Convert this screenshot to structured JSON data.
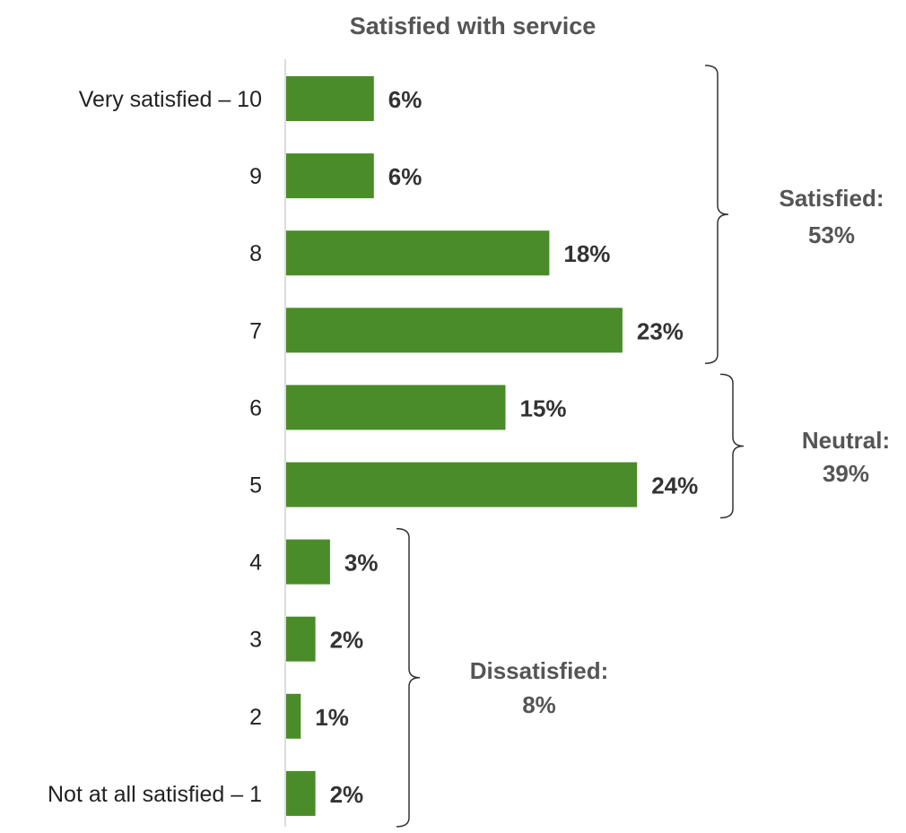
{
  "chart_data": {
    "type": "bar",
    "orientation": "horizontal",
    "title": "Satisfied with service",
    "categories": [
      "Very satisfied – 10",
      "9",
      "8",
      "7",
      "6",
      "5",
      "4",
      "3",
      "2",
      "Not at all satisfied – 1"
    ],
    "values": [
      6,
      6,
      18,
      23,
      15,
      24,
      3,
      2,
      1,
      2
    ],
    "value_labels": [
      "6%",
      "6%",
      "18%",
      "23%",
      "15%",
      "24%",
      "3%",
      "2%",
      "1%",
      "2%"
    ],
    "bar_color": "#4a8c2a",
    "grid": false,
    "legend": "none",
    "groups": [
      {
        "label": "Satisfied:",
        "value": "53%",
        "from": 0,
        "to": 3
      },
      {
        "label": "Neutral:",
        "value": "39%",
        "from": 4,
        "to": 5
      },
      {
        "label": "Dissatisfied:",
        "value": "8%",
        "from": 6,
        "to": 9
      }
    ]
  }
}
